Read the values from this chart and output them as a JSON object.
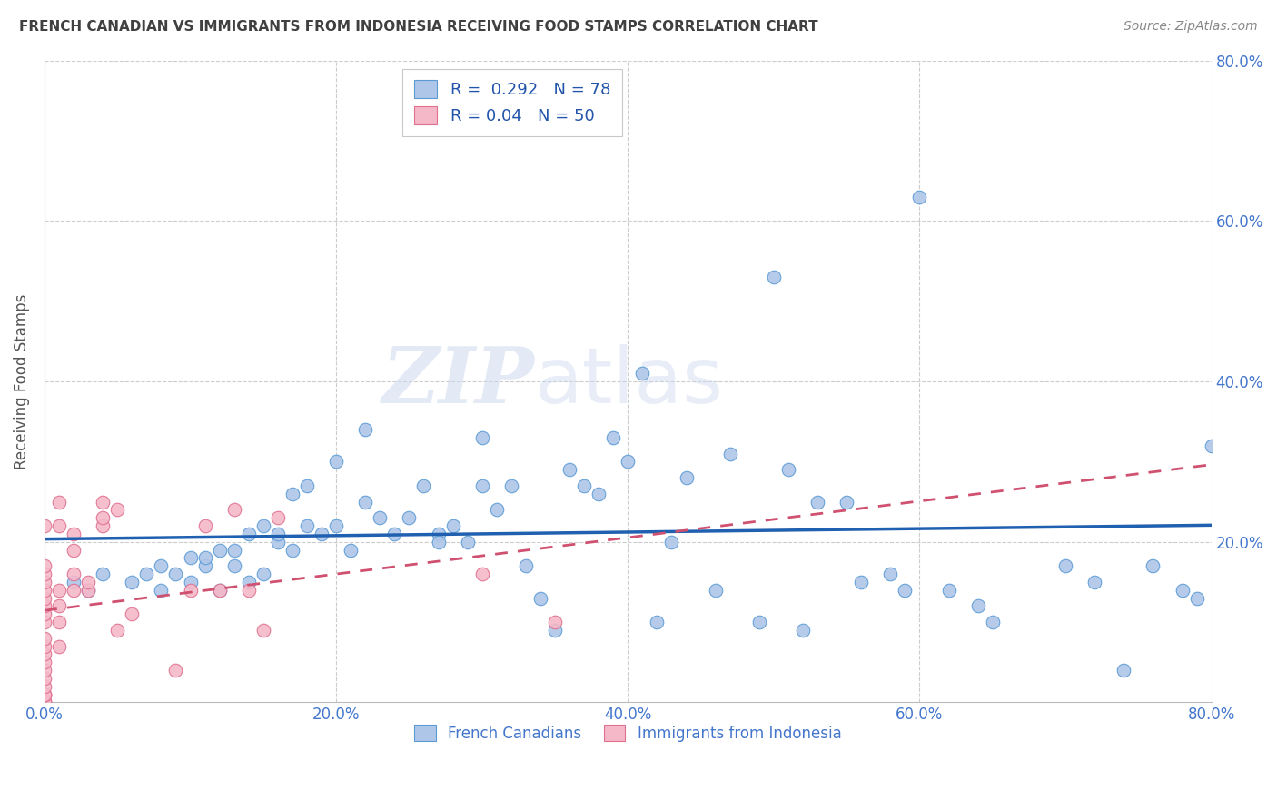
{
  "title": "FRENCH CANADIAN VS IMMIGRANTS FROM INDONESIA RECEIVING FOOD STAMPS CORRELATION CHART",
  "source": "Source: ZipAtlas.com",
  "ylabel": "Receiving Food Stamps",
  "xlim": [
    0.0,
    0.8
  ],
  "ylim": [
    0.0,
    0.8
  ],
  "xticks": [
    0.0,
    0.2,
    0.4,
    0.6,
    0.8
  ],
  "yticks": [
    0.2,
    0.4,
    0.6,
    0.8
  ],
  "xticklabels": [
    "0.0%",
    "20.0%",
    "40.0%",
    "60.0%",
    "80.0%"
  ],
  "yticklabels_right": [
    "20.0%",
    "40.0%",
    "60.0%",
    "80.0%"
  ],
  "blue_R": 0.292,
  "blue_N": 78,
  "pink_R": 0.04,
  "pink_N": 50,
  "blue_color": "#aec6e8",
  "blue_edge_color": "#5b9bd5",
  "blue_line_color": "#2060b0",
  "pink_color": "#f4b8c8",
  "pink_edge_color": "#e07090",
  "pink_line_color": "#d05070",
  "watermark_text": "ZIPatlas",
  "grid_color": "#cccccc",
  "title_color": "#404040",
  "tick_color": "#4477cc",
  "legend_label_color": "#2255aa",
  "blue_scatter_x": [
    0.02,
    0.03,
    0.04,
    0.06,
    0.07,
    0.08,
    0.08,
    0.09,
    0.1,
    0.1,
    0.11,
    0.11,
    0.12,
    0.12,
    0.13,
    0.13,
    0.14,
    0.14,
    0.15,
    0.15,
    0.16,
    0.16,
    0.17,
    0.17,
    0.18,
    0.18,
    0.19,
    0.2,
    0.2,
    0.21,
    0.22,
    0.22,
    0.23,
    0.24,
    0.25,
    0.26,
    0.27,
    0.27,
    0.28,
    0.29,
    0.3,
    0.3,
    0.31,
    0.32,
    0.33,
    0.34,
    0.35,
    0.36,
    0.37,
    0.38,
    0.39,
    0.4,
    0.41,
    0.42,
    0.43,
    0.44,
    0.46,
    0.47,
    0.49,
    0.5,
    0.51,
    0.52,
    0.53,
    0.55,
    0.56,
    0.58,
    0.59,
    0.6,
    0.62,
    0.64,
    0.65,
    0.7,
    0.72,
    0.74,
    0.76,
    0.78,
    0.79,
    0.8
  ],
  "blue_scatter_y": [
    0.15,
    0.14,
    0.16,
    0.15,
    0.16,
    0.14,
    0.17,
    0.16,
    0.15,
    0.18,
    0.17,
    0.18,
    0.14,
    0.19,
    0.17,
    0.19,
    0.15,
    0.21,
    0.16,
    0.22,
    0.2,
    0.21,
    0.19,
    0.26,
    0.22,
    0.27,
    0.21,
    0.22,
    0.3,
    0.19,
    0.25,
    0.34,
    0.23,
    0.21,
    0.23,
    0.27,
    0.21,
    0.2,
    0.22,
    0.2,
    0.27,
    0.33,
    0.24,
    0.27,
    0.17,
    0.13,
    0.09,
    0.29,
    0.27,
    0.26,
    0.33,
    0.3,
    0.41,
    0.1,
    0.2,
    0.28,
    0.14,
    0.31,
    0.1,
    0.53,
    0.29,
    0.09,
    0.25,
    0.25,
    0.15,
    0.16,
    0.14,
    0.63,
    0.14,
    0.12,
    0.1,
    0.17,
    0.15,
    0.04,
    0.17,
    0.14,
    0.13,
    0.32
  ],
  "pink_scatter_x": [
    0.0,
    0.0,
    0.0,
    0.0,
    0.0,
    0.0,
    0.0,
    0.0,
    0.0,
    0.0,
    0.0,
    0.0,
    0.0,
    0.0,
    0.0,
    0.0,
    0.0,
    0.0,
    0.0,
    0.0,
    0.0,
    0.0,
    0.01,
    0.01,
    0.01,
    0.01,
    0.01,
    0.01,
    0.02,
    0.02,
    0.02,
    0.02,
    0.03,
    0.03,
    0.04,
    0.04,
    0.04,
    0.05,
    0.05,
    0.06,
    0.09,
    0.1,
    0.11,
    0.12,
    0.13,
    0.14,
    0.15,
    0.16,
    0.3,
    0.35
  ],
  "pink_scatter_y": [
    0.0,
    0.0,
    0.0,
    0.01,
    0.01,
    0.01,
    0.02,
    0.03,
    0.04,
    0.05,
    0.06,
    0.07,
    0.08,
    0.1,
    0.11,
    0.12,
    0.13,
    0.14,
    0.15,
    0.16,
    0.17,
    0.22,
    0.07,
    0.1,
    0.12,
    0.14,
    0.22,
    0.25,
    0.14,
    0.16,
    0.19,
    0.21,
    0.14,
    0.15,
    0.22,
    0.23,
    0.25,
    0.09,
    0.24,
    0.11,
    0.04,
    0.14,
    0.22,
    0.14,
    0.24,
    0.14,
    0.09,
    0.23,
    0.16,
    0.1
  ]
}
